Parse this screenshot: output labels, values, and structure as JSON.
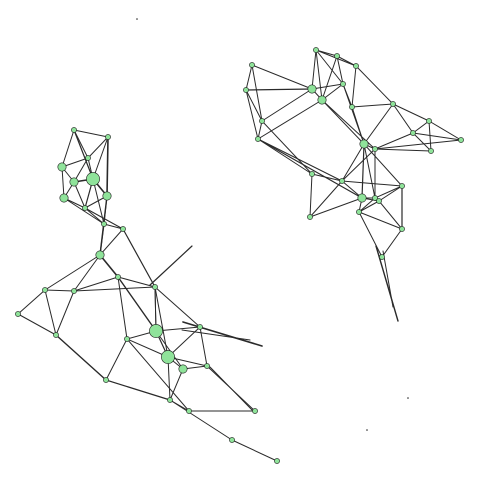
{
  "style": {
    "background": "#ffffff",
    "node_fill": "#8fe39a",
    "node_stroke": "#1a1a1a",
    "edge_color": "#2a2a2a"
  },
  "graph": {
    "components": [
      {
        "name": "left-network",
        "nodes": [
          {
            "id": "L1",
            "size": "small"
          },
          {
            "id": "L2",
            "size": "small"
          },
          {
            "id": "L3",
            "size": "medium"
          },
          {
            "id": "L4",
            "size": "small"
          },
          {
            "id": "L5",
            "size": "medium"
          },
          {
            "id": "L6",
            "size": "large"
          },
          {
            "id": "L7",
            "size": "medium"
          },
          {
            "id": "L8",
            "size": "medium"
          },
          {
            "id": "L9",
            "size": "small"
          },
          {
            "id": "L10",
            "size": "small"
          },
          {
            "id": "L11",
            "size": "small"
          },
          {
            "id": "L12",
            "size": "medium"
          },
          {
            "id": "L13",
            "size": "small"
          },
          {
            "id": "L14",
            "size": "small"
          },
          {
            "id": "L15",
            "size": "small"
          },
          {
            "id": "L16",
            "size": "small"
          },
          {
            "id": "L17",
            "size": "small"
          },
          {
            "id": "L18",
            "size": "small"
          },
          {
            "id": "L19",
            "size": "large"
          },
          {
            "id": "L20",
            "size": "small"
          },
          {
            "id": "L21",
            "size": "small"
          },
          {
            "id": "L22",
            "size": "large"
          },
          {
            "id": "L23",
            "size": "medium"
          },
          {
            "id": "L24",
            "size": "small"
          },
          {
            "id": "L25",
            "size": "small"
          },
          {
            "id": "L26",
            "size": "small"
          },
          {
            "id": "L27",
            "size": "small"
          },
          {
            "id": "L28",
            "size": "small"
          },
          {
            "id": "L29",
            "size": "small"
          },
          {
            "id": "L30",
            "size": "small"
          }
        ]
      },
      {
        "name": "right-network",
        "nodes": [
          {
            "id": "R1",
            "size": "small"
          },
          {
            "id": "R2",
            "size": "small"
          },
          {
            "id": "R3",
            "size": "small"
          },
          {
            "id": "R4",
            "size": "small"
          },
          {
            "id": "R5",
            "size": "medium"
          },
          {
            "id": "R6",
            "size": "small"
          },
          {
            "id": "R7",
            "size": "medium"
          },
          {
            "id": "R8",
            "size": "small"
          },
          {
            "id": "R9",
            "size": "small"
          },
          {
            "id": "R10",
            "size": "small"
          },
          {
            "id": "R11",
            "size": "small"
          },
          {
            "id": "R12",
            "size": "small"
          },
          {
            "id": "R13",
            "size": "small"
          },
          {
            "id": "R14",
            "size": "small"
          },
          {
            "id": "R15",
            "size": "medium"
          },
          {
            "id": "R16",
            "size": "small"
          },
          {
            "id": "R17",
            "size": "small"
          },
          {
            "id": "R18",
            "size": "small"
          },
          {
            "id": "R19",
            "size": "small"
          },
          {
            "id": "R20",
            "size": "medium"
          },
          {
            "id": "R21",
            "size": "small"
          },
          {
            "id": "R22",
            "size": "small"
          },
          {
            "id": "R23",
            "size": "small"
          },
          {
            "id": "R24",
            "size": "small"
          },
          {
            "id": "R25",
            "size": "small"
          },
          {
            "id": "R26",
            "size": "small"
          },
          {
            "id": "R27",
            "size": "small"
          },
          {
            "id": "R28",
            "size": "small"
          }
        ]
      }
    ]
  }
}
